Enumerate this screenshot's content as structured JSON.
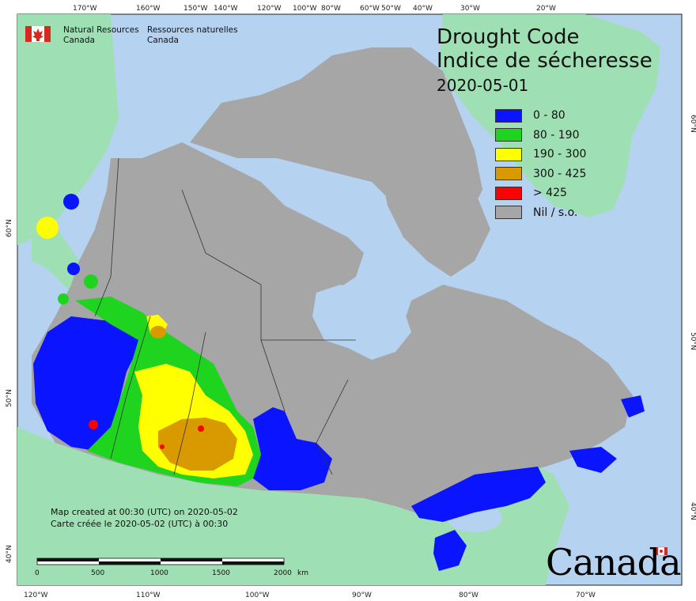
{
  "header": {
    "org_en_line1": "Natural Resources",
    "org_en_line2": "Canada",
    "org_fr_line1": "Ressources naturelles",
    "org_fr_line2": "Canada"
  },
  "title": {
    "en": "Drought Code",
    "fr": "Indice de sécheresse",
    "date": "2020-05-01"
  },
  "legend": [
    {
      "label": "0 - 80",
      "color": "#0a14ff"
    },
    {
      "label": "80 - 190",
      "color": "#1fd41f"
    },
    {
      "label": "190 - 300",
      "color": "#ffff00"
    },
    {
      "label": "300 - 425",
      "color": "#d99a00"
    },
    {
      "label": "> 425",
      "color": "#ff0000"
    },
    {
      "label": "Nil / s.o.",
      "color": "#a6a6a6"
    }
  ],
  "notes": {
    "line1": "Map created at 00:30 (UTC) on 2020-05-02",
    "line2": "Carte créée le 2020-05-02 (UTC) à 00:30"
  },
  "scale_bar": {
    "labels": [
      "0",
      "500",
      "1000",
      "1500",
      "2000"
    ],
    "unit": "km"
  },
  "top_longitudes": [
    "170°W",
    "160°W",
    "150°W",
    "140°W",
    "120°W",
    "100°W",
    "80°W",
    "60°W",
    "50°W",
    "40°W",
    "30°W",
    "20°W"
  ],
  "bottom_longitudes": [
    "120°W",
    "110°W",
    "100°W",
    "90°W",
    "80°W",
    "70°W"
  ],
  "left_latitudes": [
    "60°N",
    "50°N",
    "40°N"
  ],
  "right_latitudes": [
    "60°N",
    "50°N",
    "40°N"
  ],
  "wordmark": "Canada",
  "colors": {
    "ocean": "#b5d2f0",
    "land_foreign": "#9ee0b3",
    "land_canada": "#a6a6a6",
    "lakes": "#b5d2f0",
    "border": "#333333"
  }
}
